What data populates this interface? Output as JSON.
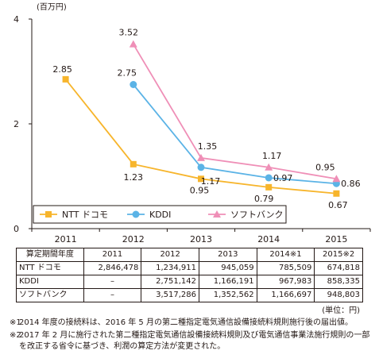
{
  "chart_data": {
    "type": "line",
    "unit_label": "(百万円)",
    "categories": [
      "2011",
      "2012",
      "2013",
      "2014",
      "2015"
    ],
    "ylim": [
      0,
      4
    ],
    "yticks": [
      0,
      2,
      4
    ],
    "grid": false,
    "legend_position": "bottom-left",
    "series": [
      {
        "name": "NTT ドコモ",
        "color": "#f7b52c",
        "marker": "square",
        "values": [
          2.85,
          1.23,
          0.95,
          0.79,
          0.67
        ],
        "labels": [
          "2.85",
          "1.23",
          "0.95",
          "0.79",
          "0.67"
        ]
      },
      {
        "name": "KDDI",
        "color": "#5bb3e6",
        "marker": "circle",
        "values": [
          null,
          2.75,
          1.17,
          0.97,
          0.86
        ],
        "labels": [
          "",
          "2.75",
          "1.17",
          "0.97",
          "0.86"
        ]
      },
      {
        "name": "ソフトバンク",
        "color": "#ef8fb7",
        "marker": "triangle",
        "values": [
          null,
          3.52,
          1.35,
          1.17,
          0.95
        ],
        "labels": [
          "",
          "3.52",
          "1.35",
          "1.17",
          "0.95"
        ]
      }
    ]
  },
  "table": {
    "header": [
      "算定期間年度",
      "2011",
      "2012",
      "2013",
      "2014※1",
      "2015※2"
    ],
    "rows": [
      [
        "NTT ドコモ",
        "2,846,478",
        "1,234,911",
        "945,059",
        "785,509",
        "674,818"
      ],
      [
        "KDDI",
        "–",
        "2,751,142",
        "1,166,191",
        "967,983",
        "858,335"
      ],
      [
        "ソフトバンク",
        "–",
        "3,517,286",
        "1,352,562",
        "1,166,697",
        "948,803"
      ]
    ]
  },
  "unit_note": "(単位：円)",
  "footnotes": [
    {
      "mark": "※1",
      "text": "2014 年度の接続料は、2016 年 5 月の第二種指定電気通信設備接続料規則施行後の届出値。"
    },
    {
      "mark": "※2",
      "text": "2017 年 2 月に施行された第二種指定電気通信設備接続料規則及び電気通信事業法施行規則の一部を改正する省令に基づき、利潤の算定方法が変更された。"
    }
  ]
}
